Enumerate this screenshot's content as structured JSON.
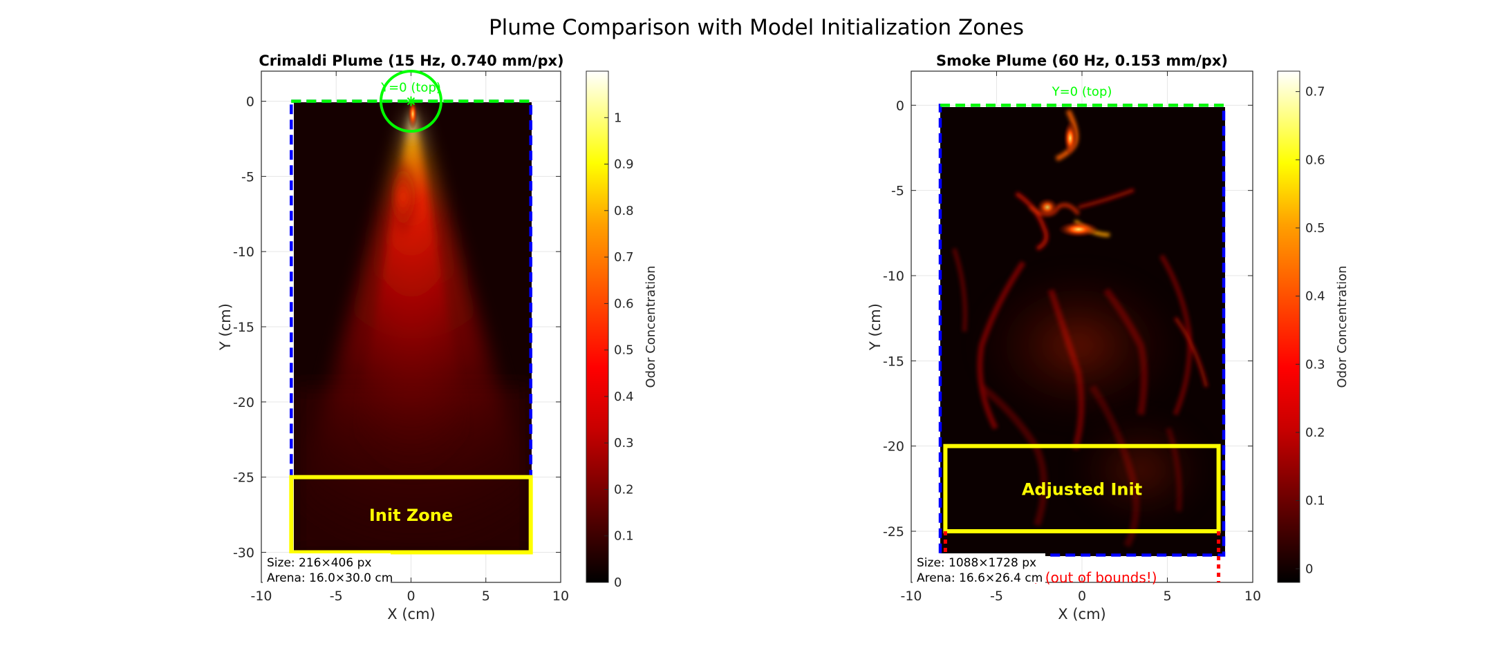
{
  "suptitle": "Plume Comparison with Model Initialization Zones",
  "colormap": "hot",
  "colors": {
    "arena_outline": "#0000ff",
    "top_line": "#00ff00",
    "init_zone": "#ffff00",
    "out_of_bounds": "#ff0000",
    "source_marker": "#00ff00"
  },
  "chart_data": [
    {
      "type": "heatmap",
      "title": "Crimaldi Plume (15 Hz, 0.740 mm/px)",
      "xlabel": "X (cm)",
      "ylabel": "Y (cm)",
      "xlim": [
        -10,
        10
      ],
      "ylim": [
        -32,
        2
      ],
      "xticks": [
        -10,
        -5,
        0,
        5,
        10
      ],
      "xtick_labels": [
        "-10",
        "-5",
        "0",
        "5",
        "10"
      ],
      "yticks": [
        0,
        -5,
        -10,
        -15,
        -20,
        -25,
        -30
      ],
      "ytick_labels": [
        "0",
        "-5",
        "-10",
        "-15",
        "-20",
        "-25",
        "-30"
      ],
      "grid": true,
      "arena": {
        "x": [
          -8,
          8
        ],
        "y": [
          -30,
          0
        ]
      },
      "source": {
        "x": 0,
        "y": 0,
        "radius_cm": 2
      },
      "top_label": "Y=0 (top)",
      "init_zone": {
        "x": [
          -8,
          8
        ],
        "y": [
          -30,
          -25
        ],
        "label": "Init Zone"
      },
      "info_lines": [
        "Size: 216×406 px",
        "Arena: 16.0×30.0 cm"
      ],
      "colorbar": {
        "label": "Odor Concentration",
        "range": [
          0,
          1.1
        ],
        "ticks": [
          0,
          0.1,
          0.2,
          0.3,
          0.4,
          0.5,
          0.6,
          0.7,
          0.8,
          0.9,
          1
        ],
        "tick_labels": [
          "0",
          "0.1",
          "0.2",
          "0.3",
          "0.4",
          "0.5",
          "0.6",
          "0.7",
          "0.8",
          "0.9",
          "1"
        ]
      }
    },
    {
      "type": "heatmap",
      "title": "Smoke Plume (60 Hz, 0.153 mm/px)",
      "xlabel": "X (cm)",
      "ylabel": "Y (cm)",
      "xlim": [
        -10,
        10
      ],
      "ylim": [
        -28,
        2
      ],
      "xticks": [
        -10,
        -5,
        0,
        5,
        10
      ],
      "xtick_labels": [
        "-10",
        "-5",
        "0",
        "5",
        "10"
      ],
      "yticks": [
        0,
        -5,
        -10,
        -15,
        -20,
        -25
      ],
      "ytick_labels": [
        "0",
        "-5",
        "-10",
        "-15",
        "-20",
        "-25"
      ],
      "grid": true,
      "arena": {
        "x": [
          -8.3,
          8.3
        ],
        "y": [
          -26.4,
          0
        ]
      },
      "top_label": "Y=0 (top)",
      "init_zone": {
        "x": [
          -8,
          8
        ],
        "y": [
          -25,
          -20
        ],
        "label": "Adjusted Init"
      },
      "out_of_bounds_text": "Init\\n(out of bounds!)",
      "out_of_bounds_x": [
        -8,
        8
      ],
      "info_lines": [
        "Size: 1088×1728 px",
        "Arena: 16.6×26.4 cm"
      ],
      "colorbar": {
        "label": "Odor Concentration",
        "range": [
          -0.02,
          0.73
        ],
        "ticks": [
          0,
          0.1,
          0.2,
          0.3,
          0.4,
          0.5,
          0.6,
          0.7
        ],
        "tick_labels": [
          "0",
          "0.1",
          "0.2",
          "0.3",
          "0.4",
          "0.5",
          "0.6",
          "0.7"
        ]
      }
    }
  ]
}
